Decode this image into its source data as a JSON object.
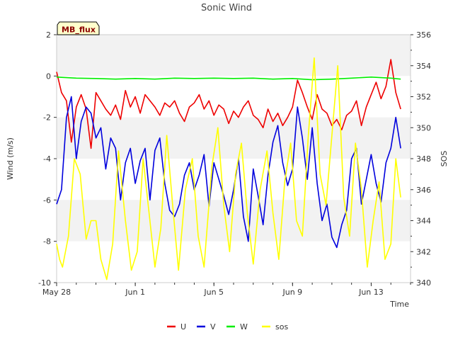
{
  "chart_data": {
    "type": "line",
    "title": "Sonic Wind",
    "xlabel": "Time",
    "ylabel_left": "Wind (m/s)",
    "ylabel_right": "SOS",
    "badge": "MB_flux",
    "x_range_days": [
      0,
      18
    ],
    "x_ticks": [
      {
        "label": "May 28",
        "day": 0
      },
      {
        "label": "Jun 1",
        "day": 4
      },
      {
        "label": "Jun 5",
        "day": 8
      },
      {
        "label": "Jun 9",
        "day": 12
      },
      {
        "label": "Jun 13",
        "day": 16
      }
    ],
    "ylim_left": [
      -10,
      2
    ],
    "yticks_left": [
      "2",
      "0",
      "-2",
      "-4",
      "-6",
      "-8",
      "-10"
    ],
    "ylim_right": [
      340,
      356
    ],
    "yticks_right": [
      "356",
      "354",
      "352",
      "350",
      "348",
      "346",
      "344",
      "342",
      "340"
    ],
    "grid": "horizontal bands",
    "legend_position": "bottom-center",
    "series": [
      {
        "name": "U",
        "color": "#ee0000",
        "axis": "left",
        "x": [
          0.0,
          0.25,
          0.5,
          0.75,
          1.0,
          1.25,
          1.5,
          1.75,
          2.0,
          2.25,
          2.5,
          2.75,
          3.0,
          3.25,
          3.5,
          3.75,
          4.0,
          4.25,
          4.5,
          4.75,
          5.0,
          5.25,
          5.5,
          5.75,
          6.0,
          6.25,
          6.5,
          6.75,
          7.0,
          7.25,
          7.5,
          7.75,
          8.0,
          8.25,
          8.5,
          8.75,
          9.0,
          9.25,
          9.5,
          9.75,
          10.0,
          10.25,
          10.5,
          10.75,
          11.0,
          11.25,
          11.5,
          11.75,
          12.0,
          12.25,
          12.5,
          12.75,
          13.0,
          13.25,
          13.5,
          13.75,
          14.0,
          14.25,
          14.5,
          14.75,
          15.0,
          15.25,
          15.5,
          15.75,
          16.0,
          16.25,
          16.5,
          16.75,
          17.0,
          17.25,
          17.5
        ],
        "y": [
          0.2,
          -0.8,
          -1.2,
          -3.2,
          -1.5,
          -0.9,
          -1.6,
          -3.5,
          -0.8,
          -1.2,
          -1.6,
          -1.9,
          -1.4,
          -2.1,
          -0.7,
          -1.5,
          -1.0,
          -1.8,
          -0.9,
          -1.2,
          -1.5,
          -1.9,
          -1.3,
          -1.5,
          -1.2,
          -1.8,
          -2.2,
          -1.5,
          -1.3,
          -0.9,
          -1.6,
          -1.2,
          -1.9,
          -1.4,
          -1.6,
          -2.3,
          -1.7,
          -2.0,
          -1.5,
          -1.2,
          -1.9,
          -2.1,
          -2.5,
          -1.6,
          -2.2,
          -1.8,
          -2.4,
          -2.0,
          -1.5,
          -0.2,
          -0.8,
          -1.5,
          -2.1,
          -0.9,
          -1.6,
          -1.8,
          -2.4,
          -2.1,
          -2.6,
          -1.9,
          -1.7,
          -1.2,
          -2.4,
          -1.5,
          -0.9,
          -0.3,
          -1.1,
          -0.5,
          0.8,
          -0.8,
          -1.6
        ]
      },
      {
        "name": "V",
        "color": "#0000dd",
        "axis": "left",
        "x": [
          0.0,
          0.25,
          0.5,
          0.75,
          1.0,
          1.25,
          1.5,
          1.75,
          2.0,
          2.25,
          2.5,
          2.75,
          3.0,
          3.25,
          3.5,
          3.75,
          4.0,
          4.25,
          4.5,
          4.75,
          5.0,
          5.25,
          5.5,
          5.75,
          6.0,
          6.25,
          6.5,
          6.75,
          7.0,
          7.25,
          7.5,
          7.75,
          8.0,
          8.25,
          8.5,
          8.75,
          9.0,
          9.25,
          9.5,
          9.75,
          10.0,
          10.25,
          10.5,
          10.75,
          11.0,
          11.25,
          11.5,
          11.75,
          12.0,
          12.25,
          12.5,
          12.75,
          13.0,
          13.25,
          13.5,
          13.75,
          14.0,
          14.25,
          14.5,
          14.75,
          15.0,
          15.25,
          15.5,
          15.75,
          16.0,
          16.25,
          16.5,
          16.75,
          17.0,
          17.25,
          17.5
        ],
        "y": [
          -6.2,
          -5.5,
          -2.0,
          -1.0,
          -4.0,
          -2.2,
          -1.5,
          -1.8,
          -3.0,
          -2.5,
          -4.5,
          -3.0,
          -3.5,
          -6.0,
          -4.2,
          -3.5,
          -5.2,
          -4.1,
          -3.5,
          -6.0,
          -3.6,
          -3.0,
          -5.2,
          -6.5,
          -6.8,
          -6.2,
          -4.8,
          -4.2,
          -5.5,
          -4.8,
          -3.8,
          -6.3,
          -4.2,
          -5.0,
          -5.8,
          -6.7,
          -5.5,
          -4.0,
          -6.8,
          -8.0,
          -4.5,
          -5.8,
          -7.2,
          -4.8,
          -3.2,
          -2.4,
          -4.2,
          -5.3,
          -4.5,
          -1.5,
          -3.0,
          -5.0,
          -2.5,
          -5.2,
          -7.0,
          -6.2,
          -7.8,
          -8.3,
          -7.2,
          -6.5,
          -4.0,
          -3.5,
          -6.2,
          -5.0,
          -3.8,
          -5.2,
          -6.1,
          -4.2,
          -3.5,
          -2.0,
          -3.5
        ]
      },
      {
        "name": "W",
        "color": "#00ee00",
        "axis": "left",
        "x": [
          0.0,
          1.0,
          2.0,
          3.0,
          4.0,
          5.0,
          6.0,
          7.0,
          8.0,
          9.0,
          10.0,
          11.0,
          12.0,
          13.0,
          14.0,
          15.0,
          16.0,
          17.0,
          17.5
        ],
        "y": [
          -0.05,
          -0.1,
          -0.12,
          -0.15,
          -0.12,
          -0.15,
          -0.1,
          -0.12,
          -0.1,
          -0.12,
          -0.1,
          -0.15,
          -0.12,
          -0.18,
          -0.15,
          -0.1,
          -0.05,
          -0.1,
          -0.15
        ]
      },
      {
        "name": "sos",
        "color": "#ffff00",
        "axis": "right",
        "x": [
          0.0,
          0.15,
          0.3,
          0.6,
          0.9,
          1.2,
          1.5,
          1.75,
          2.0,
          2.25,
          2.55,
          2.85,
          3.15,
          3.5,
          3.8,
          4.1,
          4.4,
          4.7,
          5.0,
          5.3,
          5.6,
          5.9,
          6.2,
          6.55,
          6.9,
          7.2,
          7.5,
          7.9,
          8.2,
          8.5,
          8.8,
          9.1,
          9.4,
          9.7,
          10.0,
          10.35,
          10.7,
          11.0,
          11.3,
          11.6,
          11.9,
          12.2,
          12.5,
          12.8,
          13.1,
          13.4,
          13.7,
          14.0,
          14.3,
          14.6,
          14.9,
          15.2,
          15.5,
          15.8,
          16.1,
          16.4,
          16.7,
          17.0,
          17.25,
          17.5
        ],
        "y": [
          342.5,
          341.5,
          341.0,
          343.0,
          348.0,
          347.0,
          342.8,
          344.0,
          344.0,
          341.5,
          340.2,
          342.5,
          348.5,
          344.0,
          340.8,
          342.0,
          348.0,
          344.5,
          341.0,
          343.5,
          349.5,
          345.0,
          340.8,
          346.0,
          348.0,
          343.0,
          341.0,
          347.5,
          350.0,
          345.0,
          342.0,
          347.0,
          349.0,
          344.5,
          341.2,
          346.0,
          348.5,
          344.5,
          341.5,
          346.5,
          349.0,
          344.0,
          343.0,
          349.5,
          354.5,
          347.0,
          345.0,
          349.5,
          354.0,
          345.5,
          343.0,
          349.0,
          346.0,
          341.0,
          344.0,
          346.5,
          341.5,
          342.5,
          348.0,
          345.5
        ]
      }
    ]
  }
}
